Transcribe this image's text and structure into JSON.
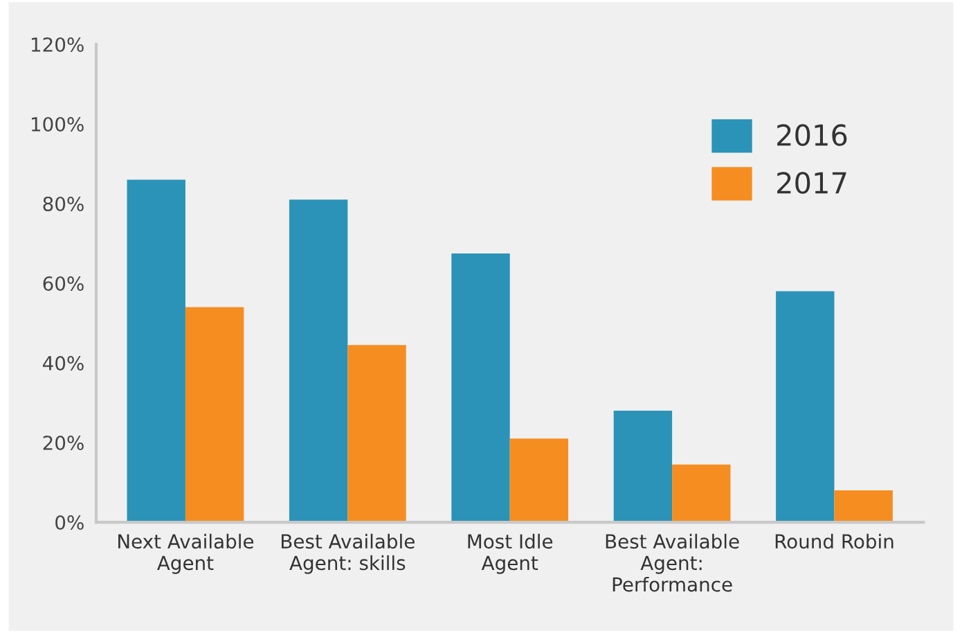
{
  "chart_data": {
    "type": "bar",
    "categories": [
      "Next Available\nAgent",
      "Best Available\nAgent: skills",
      "Most Idle\nAgent",
      "Best Available\nAgent:\nPerformance",
      "Round Robin"
    ],
    "series": [
      {
        "name": "2016",
        "color": "#2a93b7",
        "values": [
          86,
          81,
          67.5,
          28,
          58
        ]
      },
      {
        "name": "2017",
        "color": "#f68d21",
        "values": [
          54,
          44.5,
          21,
          14.5,
          8
        ]
      }
    ],
    "ylim": [
      0,
      120
    ],
    "yticks": [
      {
        "value": 0,
        "label": "0%"
      },
      {
        "value": 20,
        "label": "20%"
      },
      {
        "value": 40,
        "label": "40%"
      },
      {
        "value": 60,
        "label": "60%"
      },
      {
        "value": 80,
        "label": "80%"
      },
      {
        "value": 100,
        "label": "100%"
      },
      {
        "value": 120,
        "label": "120%"
      }
    ],
    "grid": false,
    "legend": "top right"
  }
}
